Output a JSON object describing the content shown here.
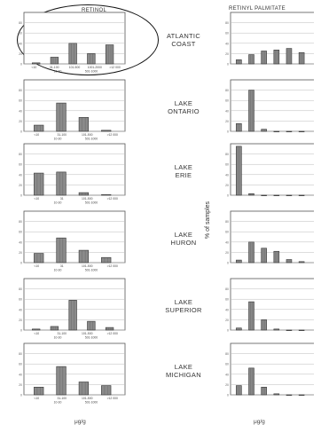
{
  "columns": {
    "left_title": "RETINOL",
    "right_title": "RETINYL PALMITATE"
  },
  "ylabel": "% of samples",
  "xunits": {
    "left": "μg/g",
    "right": "μg/g"
  },
  "chart_data": {
    "type": "bar",
    "panels": [
      {
        "region": "ATLANTIC COAST",
        "retinol": [
          2,
          13,
          40,
          20,
          37
        ],
        "palmitate": [
          8,
          18,
          25,
          27,
          30,
          22
        ],
        "retinol_ticks": [
          "<10",
          "31-100",
          "101-500",
          "1001-2000",
          ">12 000"
        ],
        "retinol_ticks_b": [
          "10-30",
          "501-1000"
        ]
      },
      {
        "region": "LAKE ONTARIO",
        "retinol": [
          12,
          55,
          27,
          2
        ],
        "palmitate": [
          15,
          80,
          4,
          0,
          0,
          0
        ],
        "retinol_ticks": [
          "<10",
          "31-100",
          "101-500",
          ">12 000"
        ],
        "retinol_ticks_b": [
          "10-30",
          "501-1000"
        ]
      },
      {
        "region": "LAKE ERIE",
        "retinol": [
          43,
          45,
          5,
          1
        ],
        "palmitate": [
          95,
          3,
          0,
          0,
          0,
          0
        ],
        "retinol_ticks": [
          "<10",
          "31",
          "101-500",
          ">12 000"
        ],
        "retinol_ticks_b": [
          "10-30",
          "501-1000"
        ]
      },
      {
        "region": "LAKE HURON",
        "retinol": [
          18,
          48,
          24,
          10
        ],
        "palmitate": [
          5,
          40,
          28,
          22,
          6,
          2
        ],
        "retinol_ticks": [
          "<10",
          "31",
          "101-500",
          ">12 000"
        ],
        "retinol_ticks_b": [
          "10-30",
          "501-1000"
        ]
      },
      {
        "region": "LAKE SUPERIOR",
        "retinol": [
          2,
          7,
          58,
          17,
          5
        ],
        "palmitate": [
          4,
          55,
          20,
          2,
          0,
          0
        ],
        "retinol_ticks": [
          "<10",
          "31-100",
          "101-500",
          ">12 000"
        ],
        "retinol_ticks_b": [
          "10-30",
          "501-1000"
        ]
      },
      {
        "region": "LAKE MICHIGAN",
        "retinol": [
          15,
          55,
          25,
          18
        ],
        "palmitate": [
          18,
          52,
          15,
          2,
          0,
          0
        ],
        "retinol_ticks": [
          "<10",
          "31-100",
          "101-500",
          ">12 000"
        ],
        "retinol_ticks_b": [
          "10-30",
          "501-1000"
        ]
      }
    ],
    "ylim": [
      0,
      100
    ]
  }
}
